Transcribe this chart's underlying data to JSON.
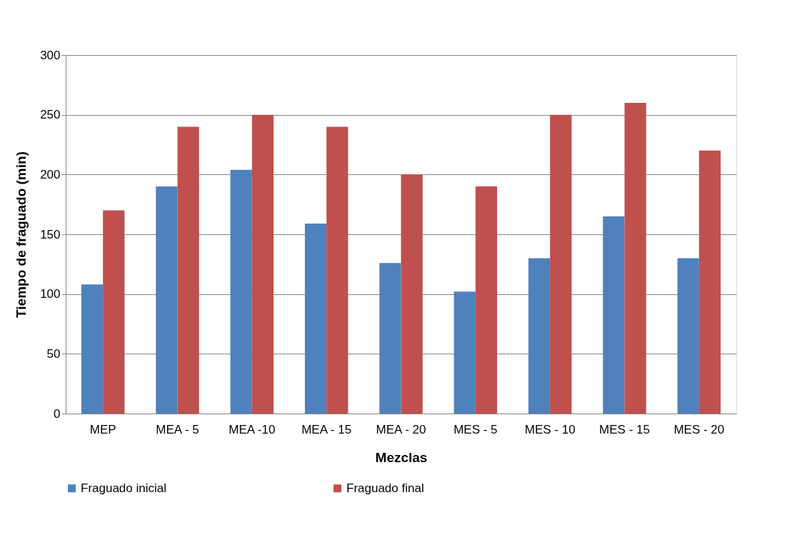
{
  "chart_data": {
    "type": "bar",
    "xlabel": "Mezclas",
    "ylabel": "Tiempo de fraguado (min)",
    "categories": [
      "MEP",
      "MEA - 5",
      "MEA -10",
      "MEA - 15",
      "MEA - 20",
      "MES - 5",
      "MES - 10",
      "MES - 15",
      "MES - 20"
    ],
    "series": [
      {
        "name": "Fraguado inicial",
        "color": "#4f81bd",
        "values": [
          108,
          190,
          204,
          159,
          126,
          102,
          130,
          165,
          130
        ]
      },
      {
        "name": "Fraguado final",
        "color": "#c0504d",
        "values": [
          170,
          240,
          250,
          240,
          200,
          190,
          250,
          260,
          220
        ]
      }
    ],
    "ylim": [
      0,
      300
    ],
    "yticks": [
      0,
      50,
      100,
      150,
      200,
      250,
      300
    ],
    "grid": "y",
    "legend": "bottom"
  }
}
